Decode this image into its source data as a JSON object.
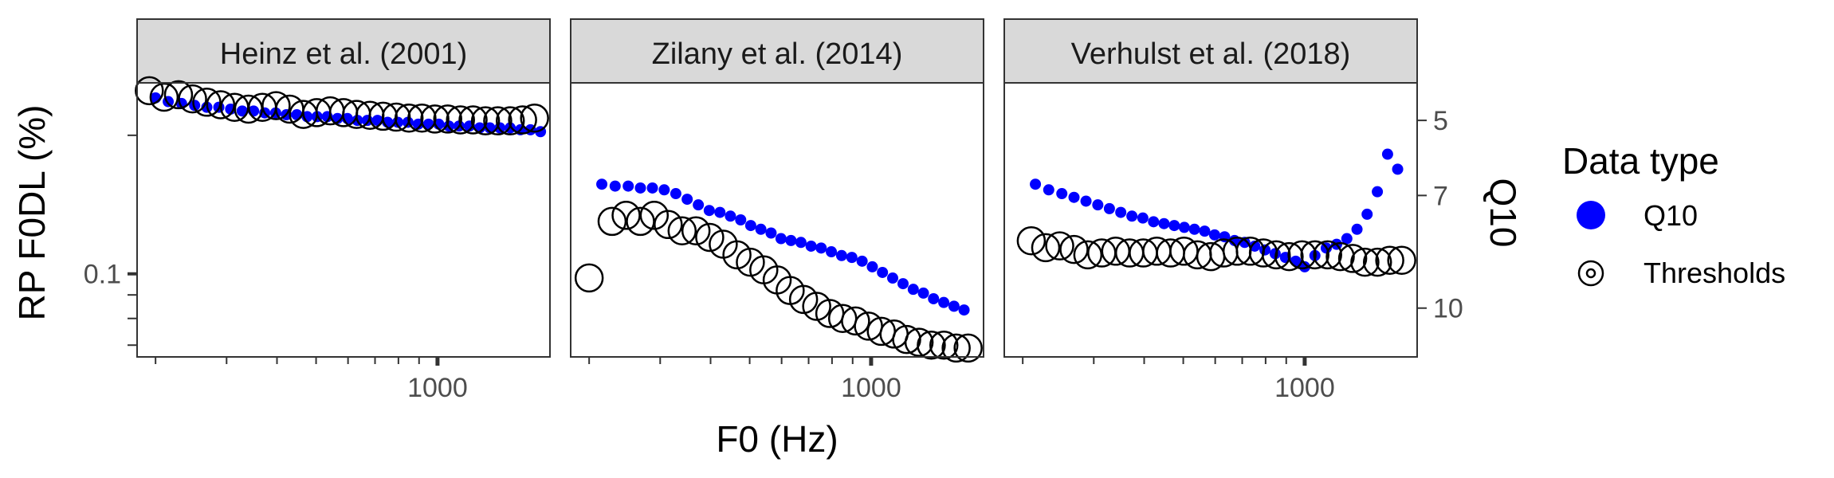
{
  "chart_data": {
    "type": "scatter",
    "xlabel": "F0 (Hz)",
    "ylabel_left": "RP F0DL (%)",
    "ylabel_right": "Q10",
    "x_scale": "log",
    "xlim": [
      180,
      1900
    ],
    "x_major_tick": 1000,
    "x_major_tick_label": "1000",
    "x_minor_ticks": [
      200,
      300,
      400,
      500,
      600,
      700,
      800,
      900
    ],
    "y_left_scale": "log",
    "y_left_ylim": [
      0.066,
      0.26
    ],
    "y_left_ticks": [
      0.07,
      0.08,
      0.09,
      0.1,
      0.2
    ],
    "y_left_tick_labels": [
      "",
      "",
      "",
      "0.1",
      ""
    ],
    "y_right_ylim": [
      11.3,
      4.0
    ],
    "y_right_ticks": [
      5,
      7,
      10
    ],
    "y_right_tick_labels": [
      "5",
      "7",
      "10"
    ],
    "legend": {
      "title": "Data type",
      "position": "right",
      "entries": [
        {
          "label": "Q10",
          "marker": "filled-circle",
          "color": "#0000ff"
        },
        {
          "label": "Thresholds",
          "marker": "open-circle",
          "color": "#000000"
        }
      ]
    },
    "panels": [
      {
        "title": "Heinz et al. (2001)",
        "series": [
          {
            "name": "Q10",
            "axis": "right",
            "points": [
              [
                200,
                4.4
              ],
              [
                215,
                4.5
              ],
              [
                232,
                4.55
              ],
              [
                250,
                4.6
              ],
              [
                268,
                4.65
              ],
              [
                287,
                4.65
              ],
              [
                307,
                4.7
              ],
              [
                328,
                4.75
              ],
              [
                350,
                4.75
              ],
              [
                373,
                4.8
              ],
              [
                397,
                4.8
              ],
              [
                422,
                4.85
              ],
              [
                448,
                4.85
              ],
              [
                475,
                4.9
              ],
              [
                503,
                4.9
              ],
              [
                533,
                4.9
              ],
              [
                565,
                4.95
              ],
              [
                598,
                4.95
              ],
              [
                633,
                5.0
              ],
              [
                670,
                5.0
              ],
              [
                710,
                5.0
              ],
              [
                752,
                5.05
              ],
              [
                797,
                5.05
              ],
              [
                845,
                5.05
              ],
              [
                896,
                5.1
              ],
              [
                950,
                5.1
              ],
              [
                1007,
                5.1
              ],
              [
                1067,
                5.15
              ],
              [
                1131,
                5.15
              ],
              [
                1200,
                5.15
              ],
              [
                1272,
                5.2
              ],
              [
                1348,
                5.2
              ],
              [
                1428,
                5.2
              ],
              [
                1514,
                5.2
              ],
              [
                1605,
                5.25
              ],
              [
                1700,
                5.25
              ],
              [
                1800,
                5.3
              ]
            ]
          },
          {
            "name": "Thresholds",
            "axis": "left",
            "points": [
              [
                193,
                0.25
              ],
              [
                210,
                0.242
              ],
              [
                228,
                0.245
              ],
              [
                247,
                0.24
              ],
              [
                268,
                0.236
              ],
              [
                290,
                0.233
              ],
              [
                314,
                0.23
              ],
              [
                340,
                0.228
              ],
              [
                368,
                0.23
              ],
              [
                398,
                0.232
              ],
              [
                430,
                0.228
              ],
              [
                465,
                0.222
              ],
              [
                502,
                0.224
              ],
              [
                542,
                0.226
              ],
              [
                585,
                0.224
              ],
              [
                630,
                0.222
              ],
              [
                680,
                0.221
              ],
              [
                733,
                0.22
              ],
              [
                790,
                0.219
              ],
              [
                850,
                0.218
              ],
              [
                915,
                0.218
              ],
              [
                985,
                0.217
              ],
              [
                1060,
                0.217
              ],
              [
                1140,
                0.216
              ],
              [
                1225,
                0.216
              ],
              [
                1315,
                0.215
              ],
              [
                1410,
                0.215
              ],
              [
                1515,
                0.215
              ],
              [
                1625,
                0.216
              ],
              [
                1740,
                0.218
              ]
            ]
          }
        ]
      },
      {
        "title": "Zilany et al. (2014)",
        "series": [
          {
            "name": "Q10",
            "axis": "right",
            "points": [
              [
                215,
                6.7
              ],
              [
                232,
                6.75
              ],
              [
                250,
                6.75
              ],
              [
                268,
                6.8
              ],
              [
                287,
                6.8
              ],
              [
                307,
                6.85
              ],
              [
                328,
                6.95
              ],
              [
                350,
                7.1
              ],
              [
                373,
                7.25
              ],
              [
                397,
                7.4
              ],
              [
                422,
                7.45
              ],
              [
                448,
                7.55
              ],
              [
                475,
                7.65
              ],
              [
                503,
                7.8
              ],
              [
                533,
                7.9
              ],
              [
                565,
                8.0
              ],
              [
                598,
                8.15
              ],
              [
                633,
                8.2
              ],
              [
                670,
                8.25
              ],
              [
                710,
                8.35
              ],
              [
                752,
                8.4
              ],
              [
                797,
                8.5
              ],
              [
                845,
                8.6
              ],
              [
                896,
                8.65
              ],
              [
                950,
                8.75
              ],
              [
                1007,
                8.9
              ],
              [
                1067,
                9.05
              ],
              [
                1131,
                9.2
              ],
              [
                1200,
                9.35
              ],
              [
                1272,
                9.5
              ],
              [
                1348,
                9.6
              ],
              [
                1428,
                9.75
              ],
              [
                1514,
                9.85
              ],
              [
                1605,
                9.95
              ],
              [
                1700,
                10.05
              ]
            ]
          },
          {
            "name": "Thresholds",
            "axis": "left",
            "points": [
              [
                200,
                0.098
              ],
              [
                228,
                0.13
              ],
              [
                247,
                0.134
              ],
              [
                268,
                0.13
              ],
              [
                290,
                0.134
              ],
              [
                314,
                0.128
              ],
              [
                340,
                0.124
              ],
              [
                368,
                0.124
              ],
              [
                398,
                0.12
              ],
              [
                430,
                0.116
              ],
              [
                465,
                0.11
              ],
              [
                502,
                0.106
              ],
              [
                542,
                0.102
              ],
              [
                585,
                0.097
              ],
              [
                630,
                0.092
              ],
              [
                680,
                0.088
              ],
              [
                733,
                0.085
              ],
              [
                790,
                0.082
              ],
              [
                850,
                0.08
              ],
              [
                915,
                0.079
              ],
              [
                985,
                0.077
              ],
              [
                1060,
                0.075
              ],
              [
                1140,
                0.074
              ],
              [
                1225,
                0.072
              ],
              [
                1315,
                0.071
              ],
              [
                1410,
                0.07
              ],
              [
                1515,
                0.07
              ],
              [
                1625,
                0.069
              ],
              [
                1740,
                0.069
              ]
            ]
          }
        ]
      },
      {
        "title": "Verhulst et al. (2018)",
        "series": [
          {
            "name": "Q10",
            "axis": "right",
            "points": [
              [
                215,
                6.7
              ],
              [
                232,
                6.85
              ],
              [
                250,
                6.95
              ],
              [
                268,
                7.05
              ],
              [
                287,
                7.15
              ],
              [
                307,
                7.25
              ],
              [
                328,
                7.35
              ],
              [
                350,
                7.45
              ],
              [
                373,
                7.55
              ],
              [
                397,
                7.6
              ],
              [
                422,
                7.7
              ],
              [
                448,
                7.75
              ],
              [
                475,
                7.8
              ],
              [
                503,
                7.85
              ],
              [
                533,
                7.9
              ],
              [
                565,
                7.95
              ],
              [
                598,
                8.05
              ],
              [
                633,
                8.1
              ],
              [
                670,
                8.2
              ],
              [
                710,
                8.25
              ],
              [
                752,
                8.35
              ],
              [
                797,
                8.45
              ],
              [
                845,
                8.55
              ],
              [
                896,
                8.65
              ],
              [
                950,
                8.75
              ],
              [
                1000,
                8.9
              ],
              [
                1060,
                8.6
              ],
              [
                1131,
                8.4
              ],
              [
                1200,
                8.3
              ],
              [
                1272,
                8.15
              ],
              [
                1348,
                7.9
              ],
              [
                1428,
                7.5
              ],
              [
                1514,
                6.9
              ],
              [
                1605,
                5.9
              ],
              [
                1700,
                6.3
              ]
            ]
          },
          {
            "name": "Thresholds",
            "axis": "left",
            "points": [
              [
                210,
                0.118
              ],
              [
                228,
                0.114
              ],
              [
                247,
                0.115
              ],
              [
                268,
                0.113
              ],
              [
                290,
                0.11
              ],
              [
                314,
                0.111
              ],
              [
                340,
                0.112
              ],
              [
                368,
                0.111
              ],
              [
                398,
                0.111
              ],
              [
                430,
                0.112
              ],
              [
                465,
                0.111
              ],
              [
                502,
                0.112
              ],
              [
                542,
                0.11
              ],
              [
                585,
                0.109
              ],
              [
                630,
                0.111
              ],
              [
                680,
                0.112
              ],
              [
                733,
                0.112
              ],
              [
                790,
                0.111
              ],
              [
                850,
                0.11
              ],
              [
                915,
                0.109
              ],
              [
                985,
                0.11
              ],
              [
                1060,
                0.11
              ],
              [
                1140,
                0.11
              ],
              [
                1225,
                0.109
              ],
              [
                1315,
                0.108
              ],
              [
                1410,
                0.106
              ],
              [
                1515,
                0.106
              ],
              [
                1625,
                0.107
              ],
              [
                1740,
                0.107
              ]
            ]
          }
        ]
      }
    ]
  }
}
